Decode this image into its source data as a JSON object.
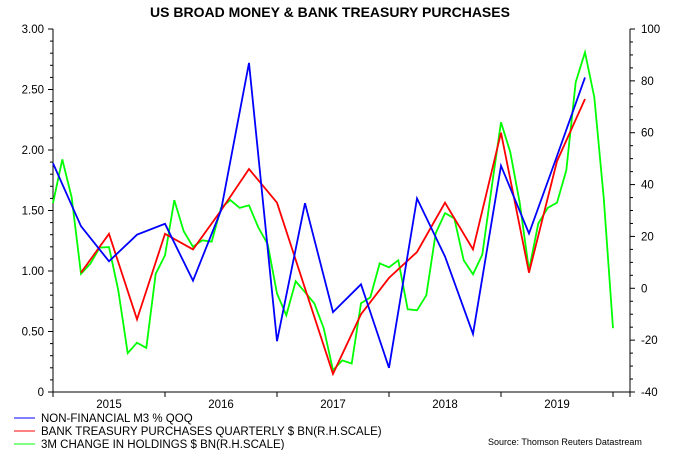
{
  "chart_data": {
    "type": "line",
    "title": "US BROAD MONEY & BANK TREASURY PURCHASES",
    "source": "Source: Thomson Reuters Datastream",
    "x_tick_labels": [
      "2015",
      "2016",
      "2017",
      "2018",
      "2019"
    ],
    "left_axis": {
      "ylim": [
        0,
        3.0
      ],
      "tick_labels": [
        "0",
        "0.50",
        "1.00",
        "1.50",
        "2.00",
        "2.50",
        "3.00"
      ]
    },
    "right_axis": {
      "ylim": [
        -40,
        100
      ],
      "tick_labels": [
        "-40",
        "-20",
        "0",
        "20",
        "40",
        "60",
        "80",
        "100"
      ]
    },
    "grid": false,
    "legend_position": "bottom-left",
    "series": [
      {
        "name": "NON-FINANCIAL M3 % QOQ",
        "color": "#0000ff",
        "axis": "left",
        "frequency": "quarterly",
        "x": [
          "2015-01",
          "2015-04",
          "2015-07",
          "2015-10",
          "2016-01",
          "2016-04",
          "2016-07",
          "2016-10",
          "2017-01",
          "2017-04",
          "2017-07",
          "2017-10",
          "2018-01",
          "2018-04",
          "2018-07",
          "2018-10",
          "2019-01",
          "2019-04",
          "2019-07",
          "2019-10"
        ],
        "values": [
          1.89,
          1.37,
          1.08,
          1.3,
          1.39,
          0.92,
          1.5,
          2.72,
          0.42,
          1.56,
          0.66,
          0.89,
          0.2,
          1.6,
          1.12,
          0.48,
          1.87,
          1.31,
          1.95,
          2.6
        ]
      },
      {
        "name": "BANK TREASURY PURCHASES QUARTERLY $ BN(R.H.SCALE)",
        "color": "#ff0000",
        "axis": "right",
        "frequency": "quarterly",
        "x": [
          "2015-04",
          "2015-07",
          "2015-10",
          "2016-01",
          "2016-04",
          "2016-07",
          "2016-10",
          "2017-01",
          "2017-04",
          "2017-07",
          "2017-10",
          "2018-01",
          "2018-04",
          "2018-07",
          "2018-10",
          "2019-01",
          "2019-04",
          "2019-07",
          "2019-10"
        ],
        "values": [
          6,
          21,
          -12,
          21,
          15,
          30,
          46,
          33,
          0,
          -33,
          -10,
          4,
          14,
          33,
          15,
          60,
          6,
          49,
          73
        ]
      },
      {
        "name": "3M CHANGE IN HOLDINGS $ BN(R.H.SCALE)",
        "color": "#00ff00",
        "axis": "right",
        "frequency": "monthly",
        "x_start": "2015-01",
        "x_end": "2020-01",
        "values": [
          32.8,
          49.7,
          35,
          5.6,
          9.5,
          15.7,
          15.9,
          -0.8,
          -25,
          -21,
          -23,
          5.6,
          12.7,
          34,
          22,
          16,
          18.5,
          18,
          31,
          34,
          31,
          32,
          23.5,
          17,
          -2,
          -10.4,
          2.7,
          -1.5,
          -5.8,
          -15.4,
          -31.6,
          -27.8,
          -29,
          -5.8,
          -3.5,
          9.6,
          8.1,
          10.8,
          -8.1,
          -8.5,
          -2.7,
          21.2,
          29,
          27,
          10.8,
          5.4,
          13,
          39,
          64,
          52.5,
          33,
          7,
          25,
          31,
          33,
          45.5,
          79.5,
          91,
          73.7,
          35,
          -15.4
        ]
      }
    ]
  }
}
